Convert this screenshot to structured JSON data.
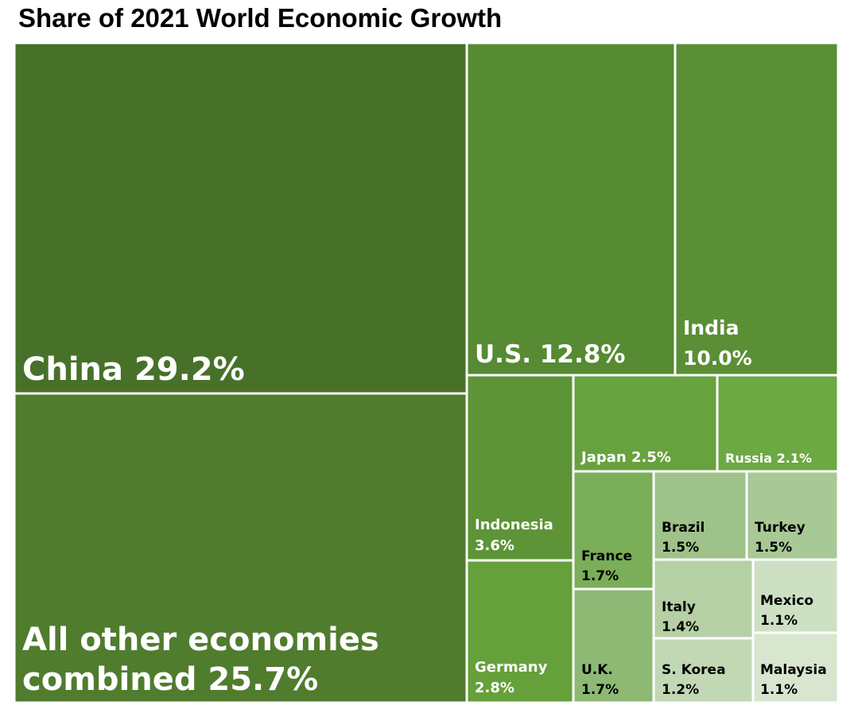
{
  "chart_data": {
    "type": "treemap",
    "title": "Share of 2021 World Economic Growth",
    "unit": "%",
    "items": [
      {
        "name": "China",
        "value": 29.2,
        "label_lines": [
          "China 29.2%"
        ],
        "color": "#477128",
        "text_color": "#ffffff"
      },
      {
        "name": "All other economies combined",
        "value": 25.7,
        "label_lines": [
          "All other economies",
          "combined 25.7%"
        ],
        "color": "#507c2e",
        "text_color": "#ffffff"
      },
      {
        "name": "U.S.",
        "value": 12.8,
        "label_lines": [
          "U.S. 12.8%"
        ],
        "color": "#568a33",
        "text_color": "#ffffff"
      },
      {
        "name": "India",
        "value": 10.0,
        "label_lines": [
          "India",
          "10.0%"
        ],
        "color": "#5a8f36",
        "text_color": "#ffffff"
      },
      {
        "name": "Indonesia",
        "value": 3.6,
        "label_lines": [
          "Indonesia",
          "3.6%"
        ],
        "color": "#5d9437",
        "text_color": "#ffffff"
      },
      {
        "name": "Germany",
        "value": 2.8,
        "label_lines": [
          "Germany",
          "2.8%"
        ],
        "color": "#65a03b",
        "text_color": "#ffffff"
      },
      {
        "name": "Japan",
        "value": 2.5,
        "label_lines": [
          "Japan 2.5%"
        ],
        "color": "#67a23f",
        "text_color": "#ffffff"
      },
      {
        "name": "Russia",
        "value": 2.1,
        "label_lines": [
          "Russia 2.1%"
        ],
        "color": "#6ca942",
        "text_color": "#ffffff"
      },
      {
        "name": "France",
        "value": 1.7,
        "label_lines": [
          "France",
          "1.7%"
        ],
        "color": "#7aae59",
        "text_color": "#000000"
      },
      {
        "name": "U.K.",
        "value": 1.7,
        "label_lines": [
          "U.K.",
          "1.7%"
        ],
        "color": "#8db975",
        "text_color": "#000000"
      },
      {
        "name": "Brazil",
        "value": 1.5,
        "label_lines": [
          "Brazil",
          "1.5%"
        ],
        "color": "#9fc28a",
        "text_color": "#000000"
      },
      {
        "name": "Turkey",
        "value": 1.5,
        "label_lines": [
          "Turkey",
          "1.5%"
        ],
        "color": "#a8c896",
        "text_color": "#000000"
      },
      {
        "name": "Italy",
        "value": 1.4,
        "label_lines": [
          "Italy",
          "1.4%"
        ],
        "color": "#b5d0a5",
        "text_color": "#000000"
      },
      {
        "name": "S. Korea",
        "value": 1.2,
        "label_lines": [
          "S. Korea",
          "1.2%"
        ],
        "color": "#c2d8b5",
        "text_color": "#000000"
      },
      {
        "name": "Mexico",
        "value": 1.1,
        "label_lines": [
          "Mexico",
          "1.1%"
        ],
        "color": "#cde0c3",
        "text_color": "#000000"
      },
      {
        "name": "Malaysia",
        "value": 1.1,
        "label_lines": [
          "Malaysia",
          "1.1%"
        ],
        "color": "#d8e6cf",
        "text_color": "#000000"
      }
    ]
  }
}
